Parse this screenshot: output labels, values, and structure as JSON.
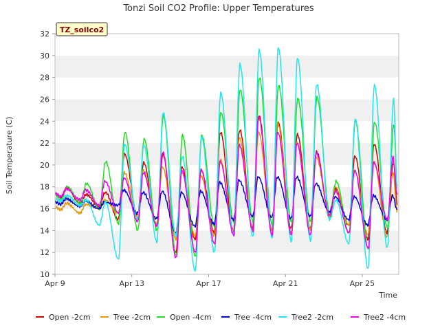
{
  "chart_data": {
    "type": "line",
    "title": "Tonzi Soil CO2 Profile: Upper Temperatures",
    "xlabel": "Time",
    "ylabel": "Soil Temperature (C)",
    "badge": "TZ_soilco2",
    "ylim": [
      10,
      32
    ],
    "yticks": [
      10,
      12,
      14,
      16,
      18,
      20,
      22,
      24,
      26,
      28,
      30,
      32
    ],
    "xlim": [
      9,
      26.9
    ],
    "xticks": [
      {
        "value": 9,
        "label": "Apr 9"
      },
      {
        "value": 13,
        "label": "Apr 13"
      },
      {
        "value": 17,
        "label": "Apr 17"
      },
      {
        "value": 21,
        "label": "Apr 21"
      },
      {
        "value": 25,
        "label": "Apr 25"
      }
    ],
    "grid": "horizontal bands",
    "legend_position": "bottom",
    "days": [
      9,
      10,
      11,
      12,
      13,
      14,
      15,
      16,
      17,
      18,
      19,
      20,
      21,
      22,
      23,
      24,
      25,
      26
    ],
    "series": [
      {
        "name": "Open -2cm",
        "color": "#cc0000",
        "max": [
          17.9,
          17.3,
          17.5,
          21.0,
          20.2,
          21.0,
          19.8,
          19.5,
          23.0,
          23.2,
          24.5,
          23.9,
          22.8,
          21.2,
          17.8,
          20.8,
          21.9,
          20.2
        ],
        "min": [
          17.0,
          16.5,
          16.2,
          15.0,
          15.4,
          14.4,
          12.0,
          13.2,
          13.8,
          14.0,
          14.2,
          14.0,
          14.2,
          14.2,
          15.2,
          14.5,
          13.2,
          13.8
        ]
      },
      {
        "name": "Tree -2cm",
        "color": "#e69500",
        "max": [
          16.5,
          16.4,
          16.8,
          19.3,
          19.5,
          19.8,
          19.3,
          19.0,
          20.5,
          22.5,
          23.0,
          23.8,
          22.0,
          20.7,
          18.0,
          19.5,
          20.3,
          19.3
        ],
        "min": [
          15.9,
          15.6,
          16.0,
          15.6,
          15.2,
          14.6,
          13.2,
          13.5,
          13.5,
          14.0,
          14.1,
          14.0,
          13.8,
          14.1,
          15.3,
          14.5,
          13.6,
          13.4
        ]
      },
      {
        "name": "Open -4cm",
        "color": "#22dd22",
        "max": [
          18.0,
          18.3,
          20.3,
          23.0,
          22.4,
          24.5,
          22.7,
          22.7,
          24.8,
          26.9,
          28.0,
          27.3,
          26.1,
          26.2,
          18.5,
          24.1,
          23.9,
          23.7
        ],
        "min": [
          16.8,
          16.5,
          16.0,
          14.6,
          14.0,
          14.0,
          11.7,
          11.6,
          14.3,
          14.8,
          14.8,
          14.5,
          14.8,
          14.8,
          15.6,
          13.8,
          12.3,
          14.3
        ]
      },
      {
        "name": "Tree -4cm",
        "color": "#0000cc",
        "max": [
          16.9,
          16.7,
          16.6,
          17.7,
          17.5,
          17.6,
          17.5,
          17.6,
          18.4,
          18.6,
          18.9,
          18.9,
          18.9,
          18.3,
          17.1,
          17.1,
          17.2,
          17.2
        ],
        "min": [
          16.4,
          16.2,
          16.0,
          16.3,
          15.6,
          15.1,
          13.8,
          14.4,
          14.6,
          15.0,
          15.3,
          15.2,
          15.1,
          15.3,
          15.7,
          15.0,
          14.5,
          15.0
        ]
      },
      {
        "name": "Tree2 -2cm",
        "color": "#22e5f0",
        "max": [
          17.2,
          16.8,
          16.6,
          21.9,
          21.8,
          24.8,
          20.8,
          22.6,
          26.6,
          29.2,
          30.5,
          30.7,
          29.8,
          27.4,
          16.8,
          24.2,
          27.3,
          26.0
        ],
        "min": [
          16.7,
          16.3,
          14.5,
          11.4,
          15.0,
          13.0,
          13.5,
          10.3,
          12.0,
          13.6,
          13.4,
          13.3,
          13.0,
          13.1,
          15.0,
          12.8,
          10.5,
          12.4
        ]
      },
      {
        "name": "Tree2 -4cm",
        "color": "#ee00ee",
        "max": [
          17.8,
          17.7,
          18.5,
          18.8,
          19.3,
          21.2,
          19.5,
          19.6,
          20.3,
          21.8,
          24.4,
          23.0,
          22.0,
          21.1,
          17.6,
          19.5,
          20.2,
          20.7
        ],
        "min": [
          17.1,
          16.8,
          16.3,
          15.6,
          14.8,
          14.4,
          11.5,
          12.0,
          12.8,
          13.6,
          14.0,
          13.6,
          13.6,
          13.6,
          15.4,
          13.8,
          12.4,
          15.0
        ]
      }
    ]
  }
}
